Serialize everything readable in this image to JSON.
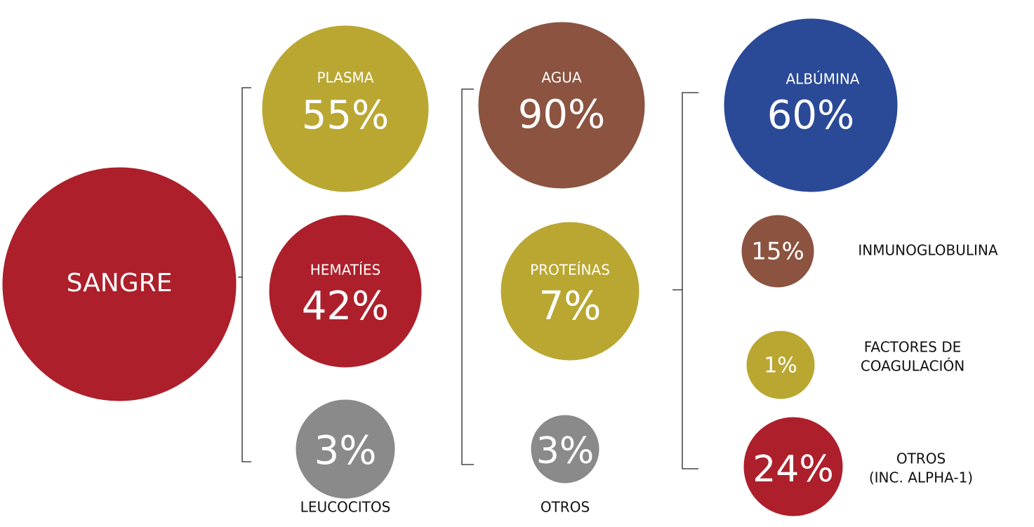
{
  "nodes": [
    {
      "label": "SANGRE"
    },
    {
      "label": "PLASMA",
      "value": "55%"
    },
    {
      "label": "HEMATÍES",
      "value": "42%"
    },
    {
      "label": "LEUCOCITOS",
      "value": "3%"
    },
    {
      "label": "AGUA",
      "value": "90%"
    },
    {
      "label": "PROTEÍNAS",
      "value": "7%"
    },
    {
      "label": "OTROS",
      "value": "3%"
    },
    {
      "label": "ALBÚMINA",
      "value": "60%"
    },
    {
      "label": "INMUNOGLOBULINA",
      "value": "15%"
    },
    {
      "label": [
        "FACTORES DE",
        "COAGULACIÓN"
      ],
      "value": "1%"
    },
    {
      "label": [
        "OTROS",
        "(INC. ALPHA-1)"
      ],
      "value": "24%"
    }
  ]
}
